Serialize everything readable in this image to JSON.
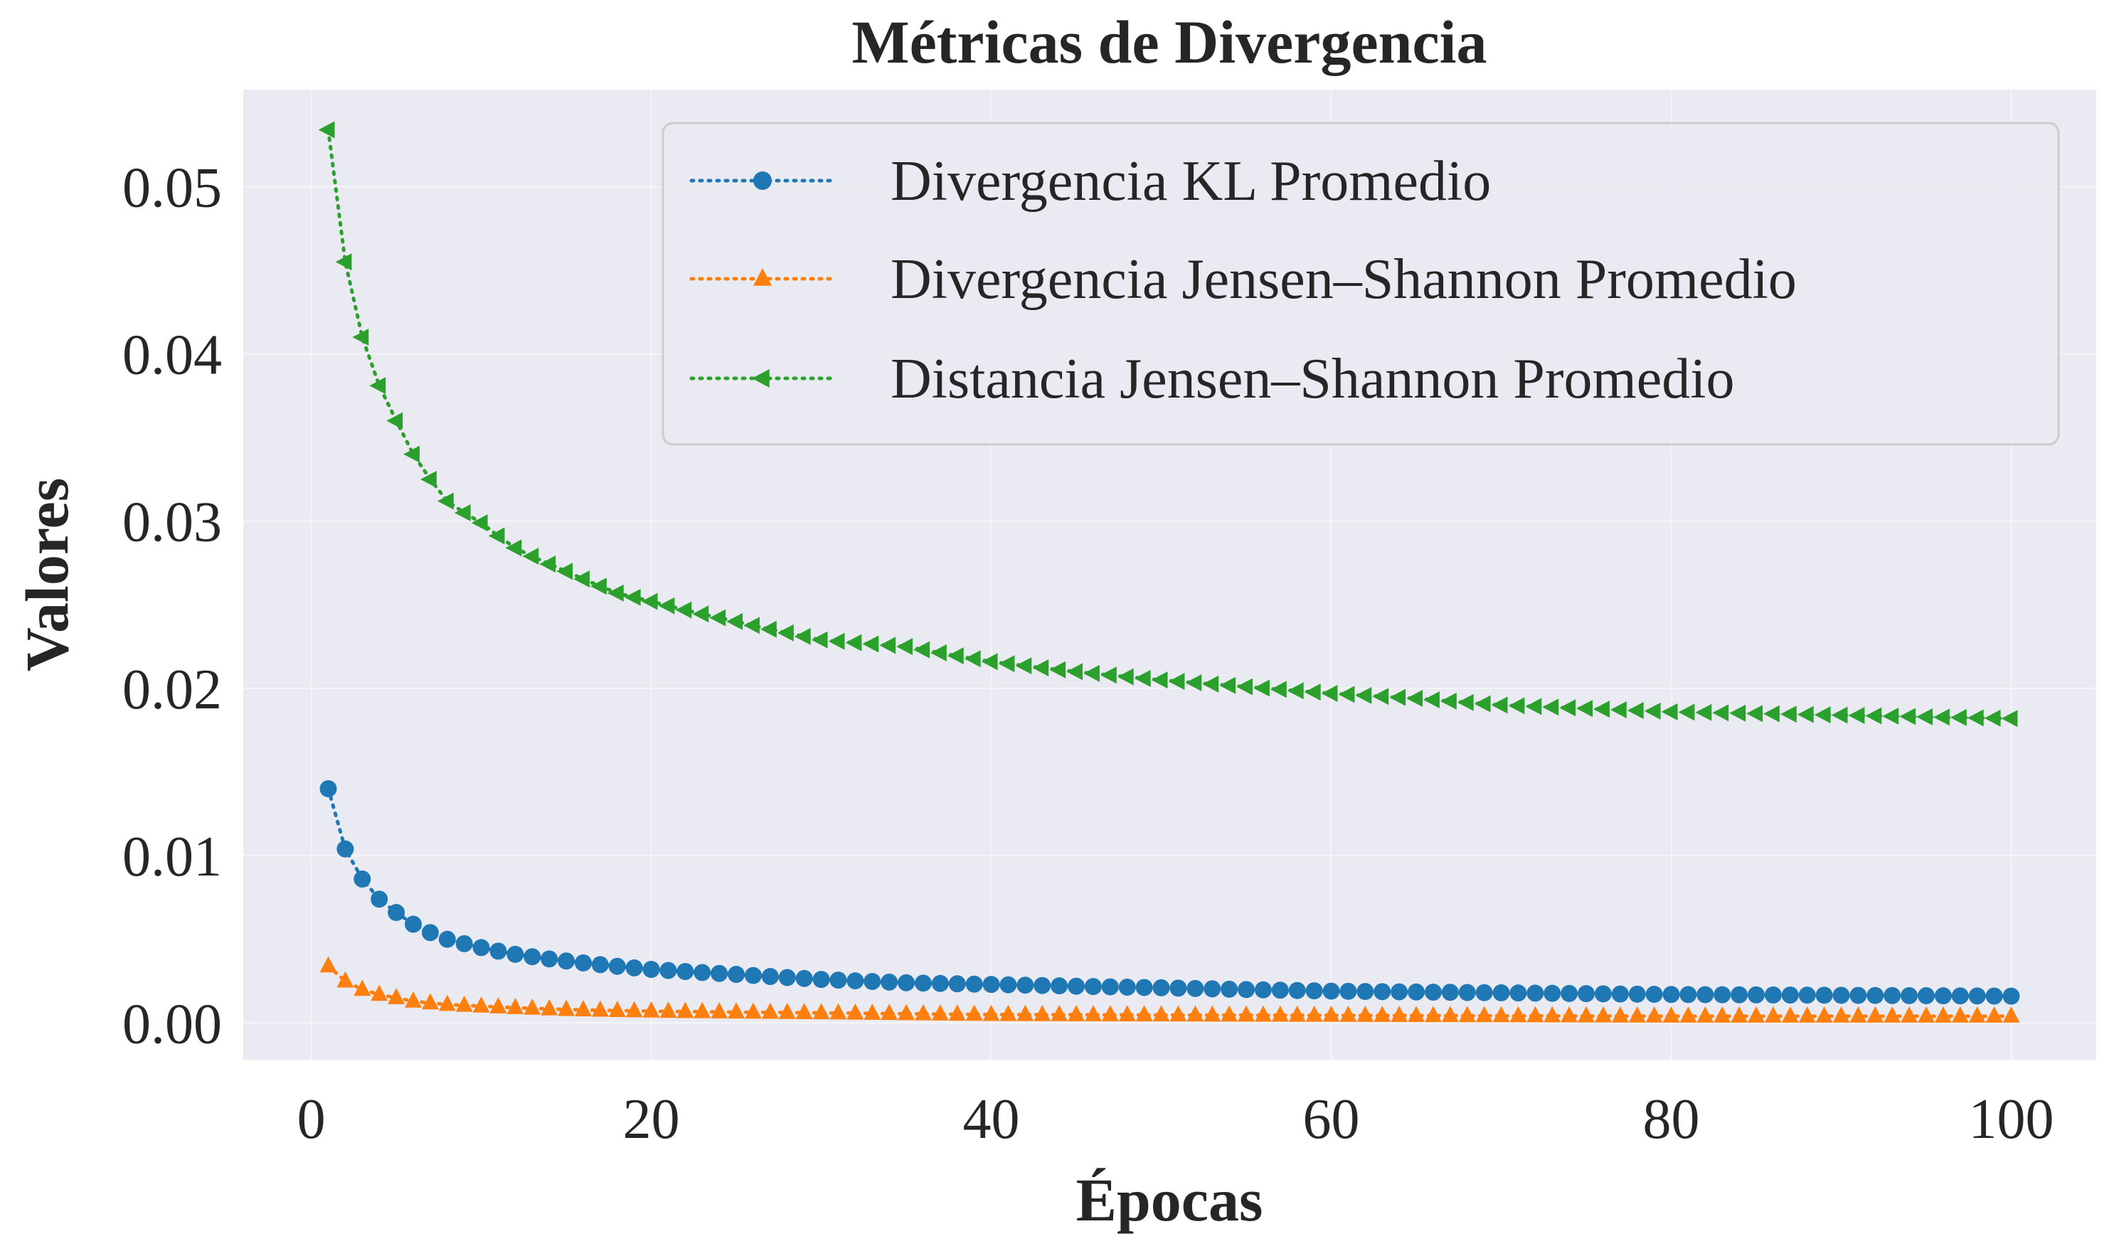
{
  "chart_data": {
    "type": "line",
    "title": "Métricas de Divergencia",
    "xlabel": "Épocas",
    "ylabel": "Valores",
    "xlim": [
      -4,
      105
    ],
    "ylim": [
      -0.0022,
      0.0558
    ],
    "xticks": [
      0,
      20,
      40,
      60,
      80,
      100
    ],
    "yticks": [
      0.0,
      0.01,
      0.02,
      0.03,
      0.04,
      0.05
    ],
    "xtick_labels": [
      "0",
      "20",
      "40",
      "60",
      "80",
      "100"
    ],
    "ytick_labels": [
      "0.00",
      "0.01",
      "0.02",
      "0.03",
      "0.04",
      "0.05"
    ],
    "grid": true,
    "legend_position": "top-right",
    "x_start": 1,
    "x_end": 100,
    "series": [
      {
        "name": "Divergencia KL Promedio",
        "color": "#1f77b4",
        "marker": "circle",
        "anchors": [
          [
            1,
            0.014
          ],
          [
            2,
            0.0104
          ],
          [
            3,
            0.0086
          ],
          [
            4,
            0.0074
          ],
          [
            5,
            0.0066
          ],
          [
            6,
            0.0059
          ],
          [
            7,
            0.0054
          ],
          [
            8,
            0.005
          ],
          [
            10,
            0.0045
          ],
          [
            12,
            0.0041
          ],
          [
            15,
            0.0037
          ],
          [
            20,
            0.0032
          ],
          [
            25,
            0.0029
          ],
          [
            30,
            0.0026
          ],
          [
            35,
            0.0024
          ],
          [
            40,
            0.0023
          ],
          [
            50,
            0.0021
          ],
          [
            60,
            0.0019
          ],
          [
            70,
            0.0018
          ],
          [
            80,
            0.0017
          ],
          [
            90,
            0.00165
          ],
          [
            100,
            0.0016
          ]
        ]
      },
      {
        "name": "Divergencia Jensen–Shannon Promedio",
        "color": "#ff7f0e",
        "marker": "triangle-up",
        "anchors": [
          [
            1,
            0.0034
          ],
          [
            2,
            0.0025
          ],
          [
            3,
            0.002
          ],
          [
            4,
            0.0017
          ],
          [
            5,
            0.0015
          ],
          [
            6,
            0.0013
          ],
          [
            8,
            0.0011
          ],
          [
            10,
            0.001
          ],
          [
            15,
            0.0008
          ],
          [
            20,
            0.0007
          ],
          [
            30,
            0.0006
          ],
          [
            40,
            0.0005
          ],
          [
            60,
            0.00045
          ],
          [
            80,
            0.0004
          ],
          [
            100,
            0.0004
          ]
        ]
      },
      {
        "name": "Distancia Jensen–Shannon Promedio",
        "color": "#2ca02c",
        "marker": "triangle-left",
        "anchors": [
          [
            1,
            0.0534
          ],
          [
            2,
            0.0455
          ],
          [
            3,
            0.041
          ],
          [
            4,
            0.0381
          ],
          [
            5,
            0.036
          ],
          [
            6,
            0.034
          ],
          [
            7,
            0.0325
          ],
          [
            8,
            0.0312
          ],
          [
            9,
            0.0305
          ],
          [
            10,
            0.0299
          ],
          [
            12,
            0.0284
          ],
          [
            15,
            0.027
          ],
          [
            18,
            0.0257
          ],
          [
            20,
            0.0252
          ],
          [
            25,
            0.024
          ],
          [
            30,
            0.0229
          ],
          [
            35,
            0.0225
          ],
          [
            40,
            0.0216
          ],
          [
            45,
            0.021
          ],
          [
            50,
            0.0205
          ],
          [
            55,
            0.0201
          ],
          [
            60,
            0.0197
          ],
          [
            65,
            0.0194
          ],
          [
            70,
            0.019
          ],
          [
            75,
            0.0188
          ],
          [
            80,
            0.0186
          ],
          [
            85,
            0.0185
          ],
          [
            90,
            0.0184
          ],
          [
            95,
            0.0183
          ],
          [
            100,
            0.0182
          ]
        ]
      }
    ]
  }
}
